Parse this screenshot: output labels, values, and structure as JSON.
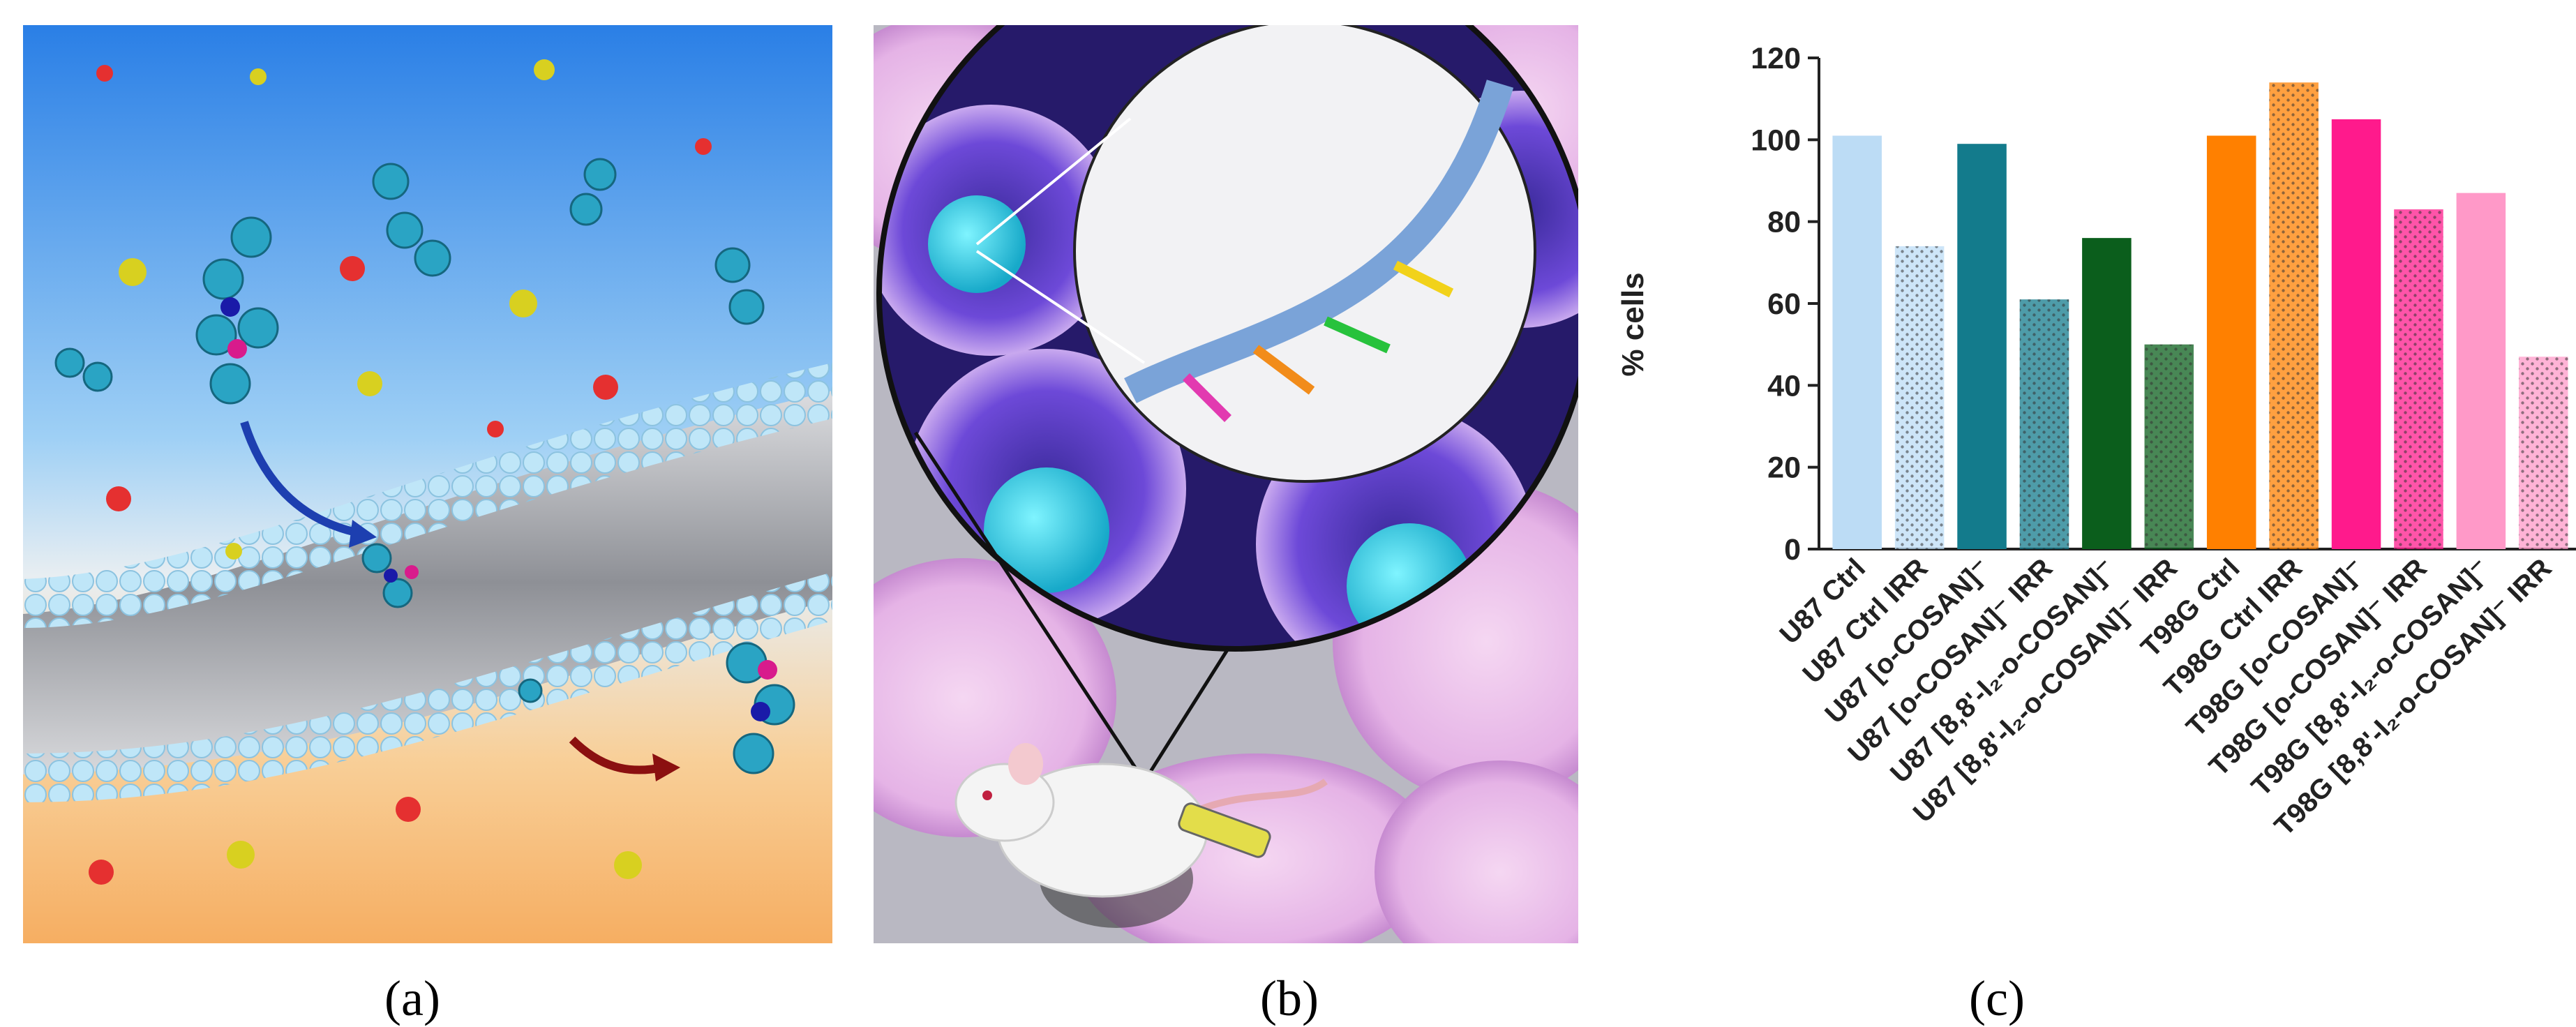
{
  "panel_labels": [
    "(a)",
    "(b)",
    "(c)"
  ],
  "chart_data": {
    "type": "bar",
    "y_label": "% cells",
    "categories": [
      "U87 Ctrl",
      "U87 Ctrl IRR",
      "U87 [o-COSAN]⁻",
      "U87 [o-COSAN]⁻ IRR",
      "U87 [8,8'-I₂-o-COSAN]⁻",
      "U87  [8,8'-I₂-o-COSAN]⁻ IRR",
      "T98G Ctrl",
      "T98G Ctrl IRR",
      "T98G [o-COSAN]⁻",
      "T98G [o-COSAN]⁻ IRR",
      "T98G [8,8'-I₂-o-COSAN]⁻",
      "T98G [8,8'-I₂-o-COSAN]⁻ IRR"
    ],
    "values": [
      101,
      74,
      99,
      61,
      76,
      50,
      101,
      114,
      105,
      83,
      87,
      47
    ],
    "colors": [
      "#bcdcf5",
      "#bcdcf5",
      "#137b8c",
      "#137b8c",
      "#0b5e1c",
      "#0b5e1c",
      "#ff8000",
      "#ff8000",
      "#ff1a8c",
      "#ff1a8c",
      "#ff99c8",
      "#ff99c8"
    ],
    "dotted": [
      false,
      true,
      false,
      true,
      false,
      true,
      false,
      true,
      false,
      true,
      false,
      true
    ],
    "ylim": [
      0,
      120
    ],
    "yticks": [
      0,
      20,
      40,
      60,
      80,
      100,
      120
    ]
  }
}
